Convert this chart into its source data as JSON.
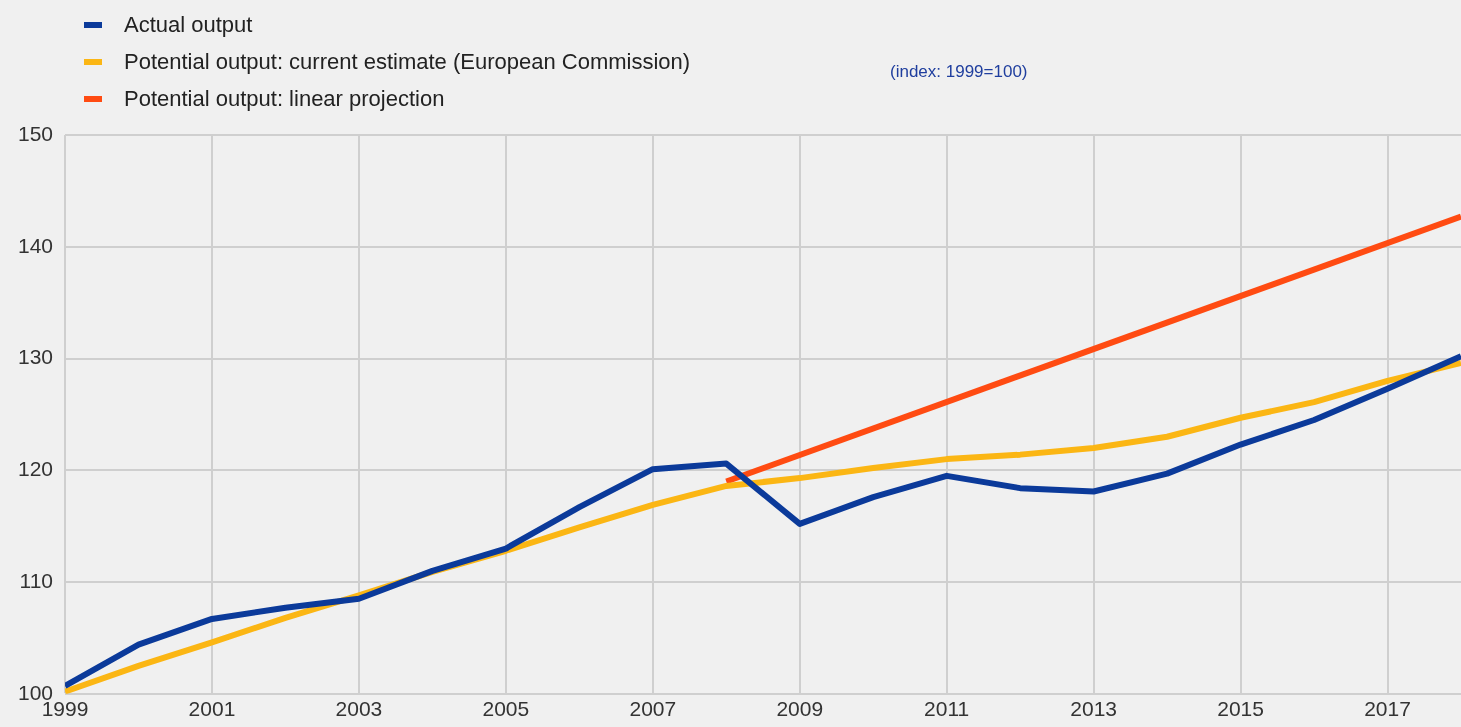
{
  "chart_data": {
    "type": "line",
    "x": [
      1999,
      2000,
      2001,
      2002,
      2003,
      2004,
      2005,
      2006,
      2007,
      2008,
      2009,
      2010,
      2011,
      2012,
      2013,
      2014,
      2015,
      2016,
      2017,
      2018
    ],
    "series": [
      {
        "name": "Actual output",
        "color": "#0b3a9a",
        "values": [
          100.7,
          104.4,
          106.7,
          107.7,
          108.5,
          111.0,
          113.0,
          116.7,
          120.1,
          120.6,
          115.2,
          117.6,
          119.5,
          118.4,
          118.1,
          119.7,
          122.3,
          124.5,
          127.3,
          130.2
        ]
      },
      {
        "name": "Potential output: current estimate (European Commission)",
        "color": "#fbb614",
        "values": [
          100.2,
          102.5,
          104.6,
          106.8,
          108.8,
          110.9,
          112.8,
          114.9,
          116.9,
          118.6,
          119.3,
          120.2,
          121.0,
          121.4,
          122.0,
          123.0,
          124.7,
          126.1,
          128.0,
          129.6
        ]
      },
      {
        "name": "Potential output: linear projection",
        "color": "#ff4b12",
        "x": [
          2008,
          2018
        ],
        "values": [
          119.0,
          142.7
        ]
      }
    ],
    "annotations": [
      "(index: 1999=100)"
    ],
    "xlim": [
      1999,
      2018
    ],
    "xticks": [
      1999,
      2001,
      2003,
      2005,
      2007,
      2009,
      2011,
      2013,
      2015,
      2017
    ],
    "ylim": [
      100,
      150
    ],
    "yticks": [
      100,
      110,
      120,
      130,
      140,
      150
    ],
    "grid": true,
    "legend": "top left",
    "marker": "none",
    "line_style": "solid"
  }
}
